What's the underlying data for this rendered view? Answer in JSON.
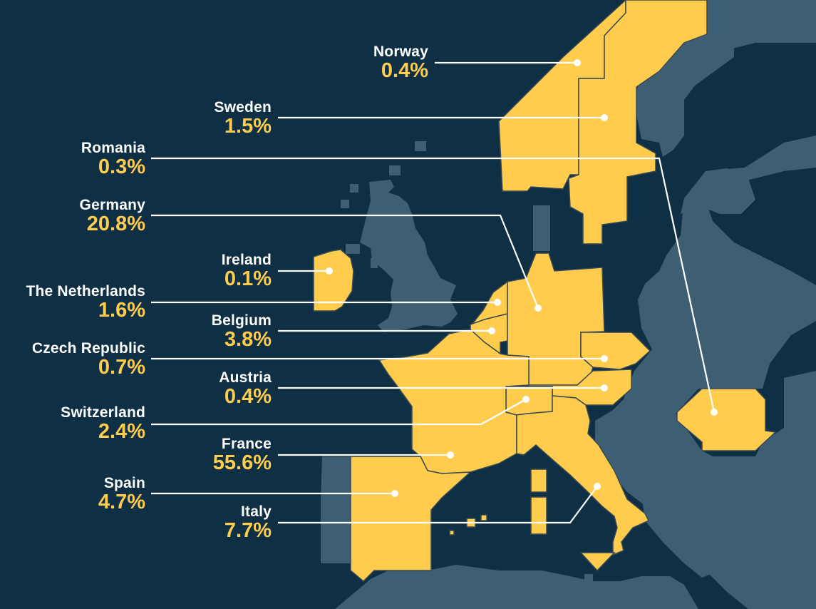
{
  "colors": {
    "background": "#0e2f44",
    "land": "#3e5f73",
    "highlight": "#ffcc4d",
    "border": "#3a4a52",
    "leader": "#ffffff",
    "text": "#ffffff",
    "percent": "#ffcc4d"
  },
  "countries": [
    {
      "id": "norway",
      "name": "Norway",
      "value": "0.4%"
    },
    {
      "id": "sweden",
      "name": "Sweden",
      "value": "1.5%"
    },
    {
      "id": "romania",
      "name": "Romania",
      "value": "0.3%"
    },
    {
      "id": "germany",
      "name": "Germany",
      "value": "20.8%"
    },
    {
      "id": "ireland",
      "name": "Ireland",
      "value": "0.1%"
    },
    {
      "id": "netherlands",
      "name": "The Netherlands",
      "value": "1.6%"
    },
    {
      "id": "belgium",
      "name": "Belgium",
      "value": "3.8%"
    },
    {
      "id": "czech",
      "name": "Czech Republic",
      "value": "0.7%"
    },
    {
      "id": "austria",
      "name": "Austria",
      "value": "0.4%"
    },
    {
      "id": "switzerland",
      "name": "Switzerland",
      "value": "2.4%"
    },
    {
      "id": "france",
      "name": "France",
      "value": "55.6%"
    },
    {
      "id": "spain",
      "name": "Spain",
      "value": "4.7%"
    },
    {
      "id": "italy",
      "name": "Italy",
      "value": "7.7%"
    }
  ]
}
